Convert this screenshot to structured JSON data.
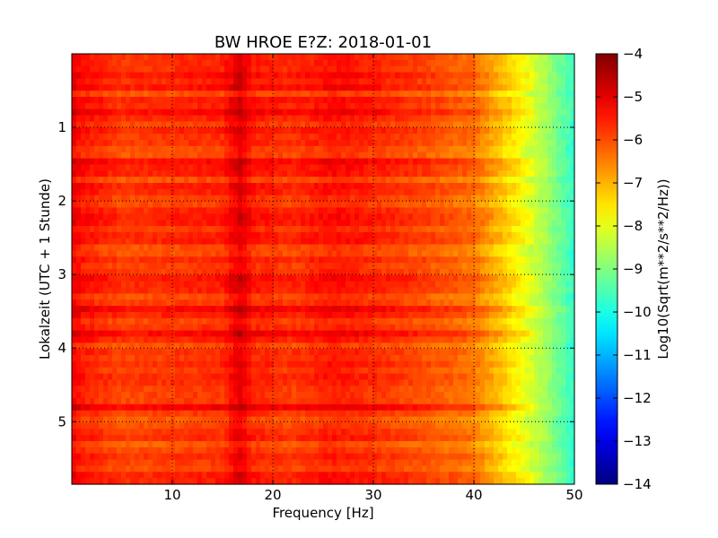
{
  "chart_data": {
    "type": "heatmap",
    "title": "BW HROE E?Z: 2018-01-01",
    "xlabel": "Frequency [Hz]",
    "ylabel": "Lokalzeit (UTC + 1 Stunde)",
    "xlim": [
      0,
      50
    ],
    "ylim": [
      5.85,
      0
    ],
    "xticks": [
      10,
      20,
      30,
      40,
      50
    ],
    "yticks": [
      1,
      2,
      3,
      4,
      5
    ],
    "grid": true,
    "colormap": "jet",
    "colorbar": {
      "label": "Log10(Sqrt(m**2/s**2/Hz))",
      "range": [
        -14,
        -4
      ],
      "ticks": [
        -4,
        -5,
        -6,
        -7,
        -8,
        -9,
        -10,
        -11,
        -12,
        -13,
        -14
      ]
    },
    "profile": [
      {
        "freq": 0,
        "value": -5.2
      },
      {
        "freq": 1,
        "value": -5.5
      },
      {
        "freq": 5,
        "value": -5.9
      },
      {
        "freq": 10,
        "value": -5.8
      },
      {
        "freq": 15,
        "value": -5.7
      },
      {
        "freq": 16.7,
        "value": -5.0
      },
      {
        "freq": 18,
        "value": -5.6
      },
      {
        "freq": 22,
        "value": -5.8
      },
      {
        "freq": 26,
        "value": -5.5
      },
      {
        "freq": 30,
        "value": -5.7
      },
      {
        "freq": 35,
        "value": -6.0
      },
      {
        "freq": 40,
        "value": -6.4
      },
      {
        "freq": 42,
        "value": -7.0
      },
      {
        "freq": 45,
        "value": -7.9
      },
      {
        "freq": 47,
        "value": -8.6
      },
      {
        "freq": 50,
        "value": -9.8
      }
    ]
  }
}
